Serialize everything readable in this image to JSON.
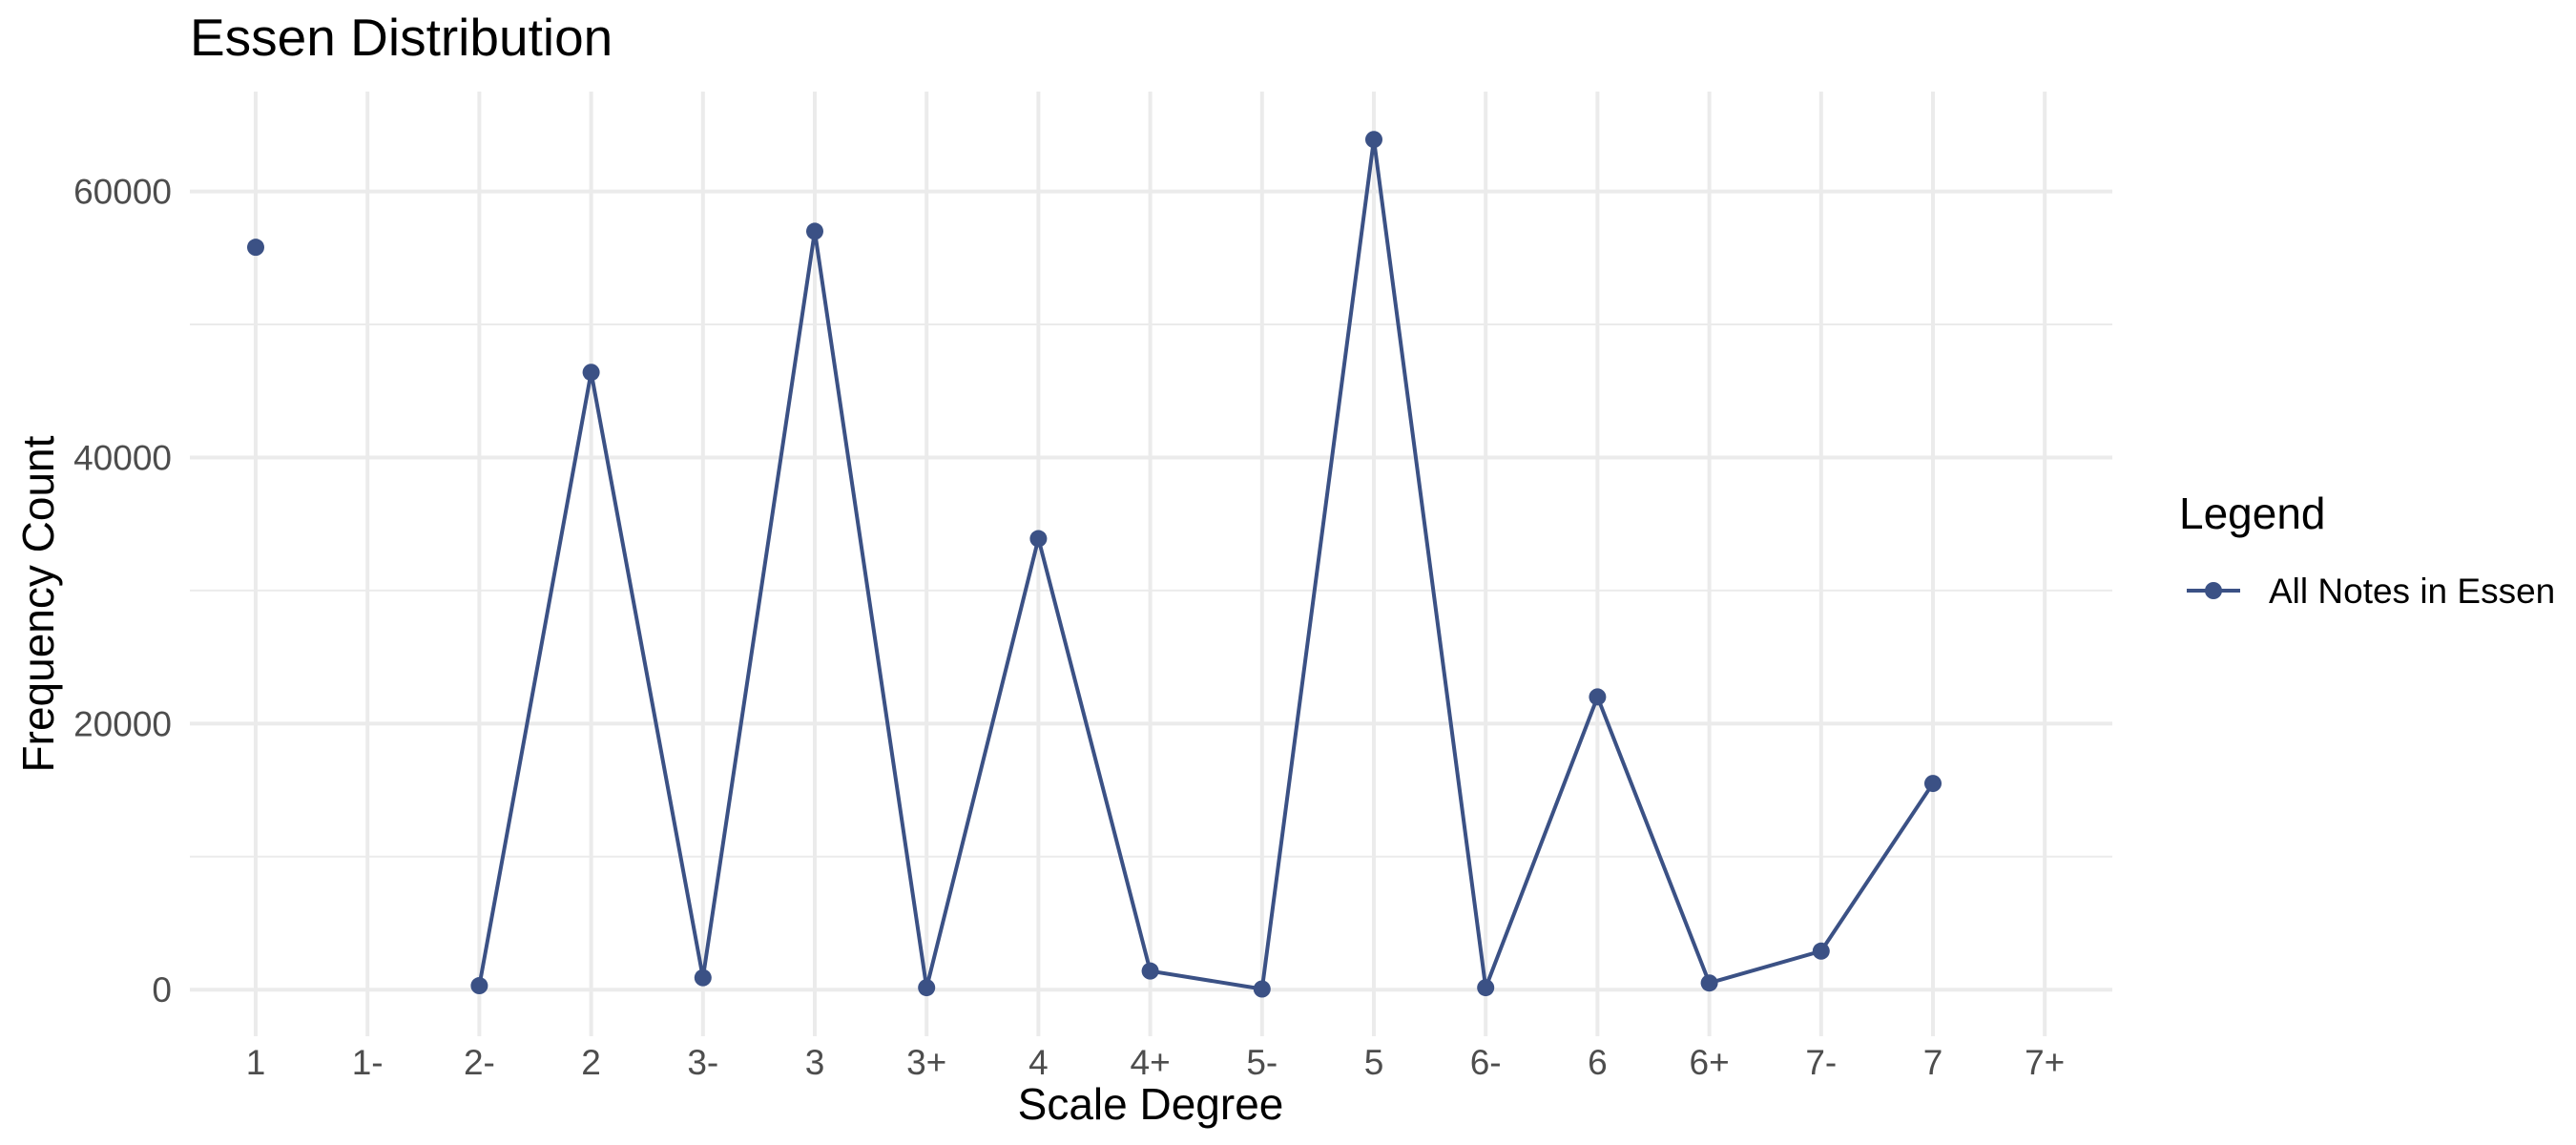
{
  "chart_data": {
    "type": "line",
    "title": "Essen Distribution",
    "xlabel": "Scale Degree",
    "ylabel": "Frequency Count",
    "categories": [
      "1",
      "1-",
      "2-",
      "2",
      "3-",
      "3",
      "3+",
      "4",
      "4+",
      "5-",
      "5",
      "6-",
      "6",
      "6+",
      "7-",
      "7",
      "7+"
    ],
    "yticks": [
      0,
      20000,
      40000,
      60000
    ],
    "ylim": [
      -3500,
      67500
    ],
    "grid": true,
    "legend": {
      "title": "Legend",
      "position": "right"
    },
    "series": [
      {
        "name": "All Notes in Essen",
        "color": "#3b5185",
        "values": [
          55800,
          null,
          300,
          46400,
          900,
          57000,
          150,
          33900,
          1400,
          50,
          63900,
          150,
          22000,
          500,
          2900,
          15500,
          null
        ]
      }
    ]
  }
}
